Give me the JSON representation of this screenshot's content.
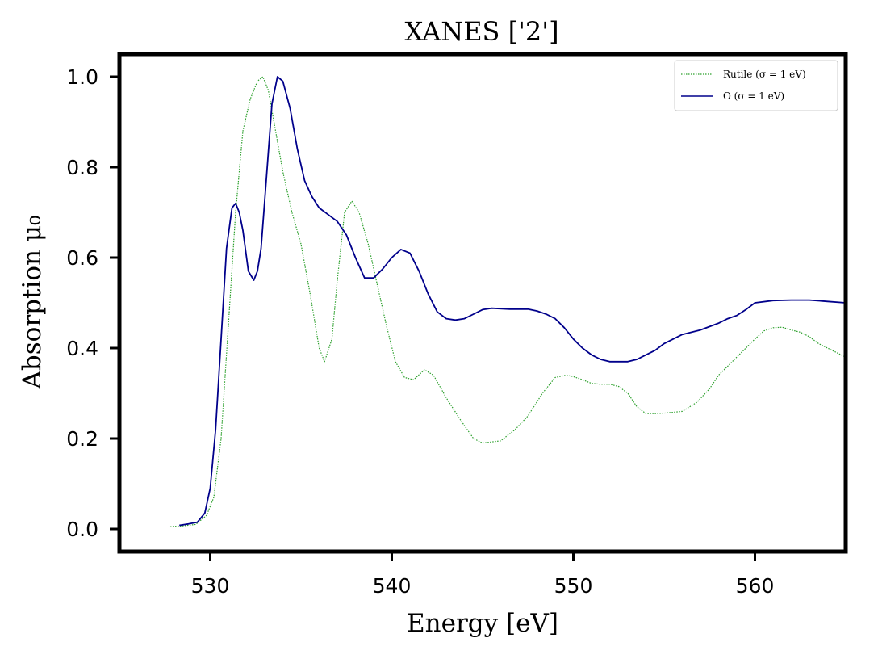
{
  "chart_data": {
    "type": "line",
    "title": "XANES ['2']",
    "xlabel": "Energy [eV]",
    "ylabel": "Absorption μ₀",
    "xlim": [
      525,
      565
    ],
    "ylim": [
      -0.05,
      1.05
    ],
    "xticks": [
      "530",
      "540",
      "550",
      "560"
    ],
    "yticks": [
      "0.0",
      "0.2",
      "0.4",
      "0.6",
      "0.8",
      "1.0"
    ],
    "grid": false,
    "legend_position": "top-right",
    "series": [
      {
        "name": "Rutile (σ = 1 eV)",
        "style": "dotted",
        "color": "#2ca02c",
        "x": [
          527.8,
          528.5,
          529.2,
          529.8,
          530.2,
          530.6,
          531.0,
          531.4,
          531.8,
          532.2,
          532.6,
          532.9,
          533.2,
          533.6,
          534.0,
          534.5,
          535.0,
          535.5,
          536.0,
          536.3,
          536.7,
          537.0,
          537.4,
          537.8,
          538.2,
          538.7,
          539.2,
          539.7,
          540.2,
          540.7,
          541.2,
          541.8,
          542.3,
          543.0,
          543.8,
          544.5,
          545.0,
          546.0,
          546.8,
          547.5,
          548.3,
          549.0,
          549.6,
          550.0,
          550.5,
          551.0,
          551.5,
          552.0,
          552.5,
          553.0,
          553.5,
          554.0,
          554.5,
          555.0,
          556.0,
          556.8,
          557.5,
          558.0,
          558.5,
          559.0,
          559.5,
          560.0,
          560.5,
          561.0,
          561.5,
          562.0,
          562.5,
          563.0,
          563.5,
          564.0,
          564.5,
          565.0
        ],
        "y": [
          0.005,
          0.007,
          0.01,
          0.03,
          0.07,
          0.2,
          0.45,
          0.7,
          0.88,
          0.95,
          0.99,
          1.0,
          0.97,
          0.88,
          0.79,
          0.7,
          0.63,
          0.52,
          0.4,
          0.37,
          0.42,
          0.55,
          0.7,
          0.725,
          0.7,
          0.63,
          0.54,
          0.45,
          0.37,
          0.335,
          0.33,
          0.352,
          0.34,
          0.29,
          0.24,
          0.2,
          0.19,
          0.195,
          0.22,
          0.25,
          0.3,
          0.335,
          0.34,
          0.337,
          0.33,
          0.322,
          0.32,
          0.32,
          0.315,
          0.3,
          0.27,
          0.255,
          0.255,
          0.256,
          0.26,
          0.28,
          0.31,
          0.34,
          0.36,
          0.38,
          0.4,
          0.42,
          0.438,
          0.445,
          0.446,
          0.44,
          0.435,
          0.425,
          0.41,
          0.4,
          0.39,
          0.38
        ]
      },
      {
        "name": "O (σ = 1 eV)",
        "style": "solid",
        "color": "#00008b",
        "x": [
          528.3,
          528.8,
          529.3,
          529.7,
          530.0,
          530.3,
          530.6,
          530.9,
          531.2,
          531.4,
          531.6,
          531.8,
          532.1,
          532.4,
          532.6,
          532.8,
          533.1,
          533.4,
          533.7,
          534.0,
          534.4,
          534.8,
          535.2,
          535.6,
          536.0,
          536.5,
          537.0,
          537.5,
          538.0,
          538.5,
          539.0,
          539.5,
          540.0,
          540.5,
          541.0,
          541.5,
          542.0,
          542.5,
          543.0,
          543.5,
          544.0,
          544.5,
          545.0,
          545.5,
          546.5,
          547.5,
          548.0,
          548.5,
          549.0,
          549.5,
          550.0,
          550.5,
          551.0,
          551.5,
          552.0,
          552.5,
          553.0,
          553.5,
          554.0,
          554.5,
          555.0,
          556.0,
          557.0,
          558.0,
          558.5,
          559.0,
          559.5,
          560.0,
          561.0,
          562.0,
          563.0,
          564.0,
          565.0
        ],
        "y": [
          0.008,
          0.011,
          0.015,
          0.035,
          0.09,
          0.22,
          0.42,
          0.62,
          0.71,
          0.72,
          0.7,
          0.66,
          0.57,
          0.55,
          0.57,
          0.62,
          0.78,
          0.94,
          1.0,
          0.99,
          0.93,
          0.84,
          0.77,
          0.735,
          0.71,
          0.695,
          0.68,
          0.65,
          0.6,
          0.555,
          0.555,
          0.575,
          0.6,
          0.618,
          0.61,
          0.57,
          0.52,
          0.48,
          0.465,
          0.462,
          0.465,
          0.475,
          0.485,
          0.488,
          0.486,
          0.486,
          0.482,
          0.475,
          0.465,
          0.445,
          0.42,
          0.4,
          0.385,
          0.375,
          0.37,
          0.37,
          0.37,
          0.375,
          0.385,
          0.395,
          0.41,
          0.43,
          0.44,
          0.455,
          0.465,
          0.472,
          0.485,
          0.5,
          0.505,
          0.506,
          0.506,
          0.503,
          0.5
        ]
      }
    ]
  }
}
